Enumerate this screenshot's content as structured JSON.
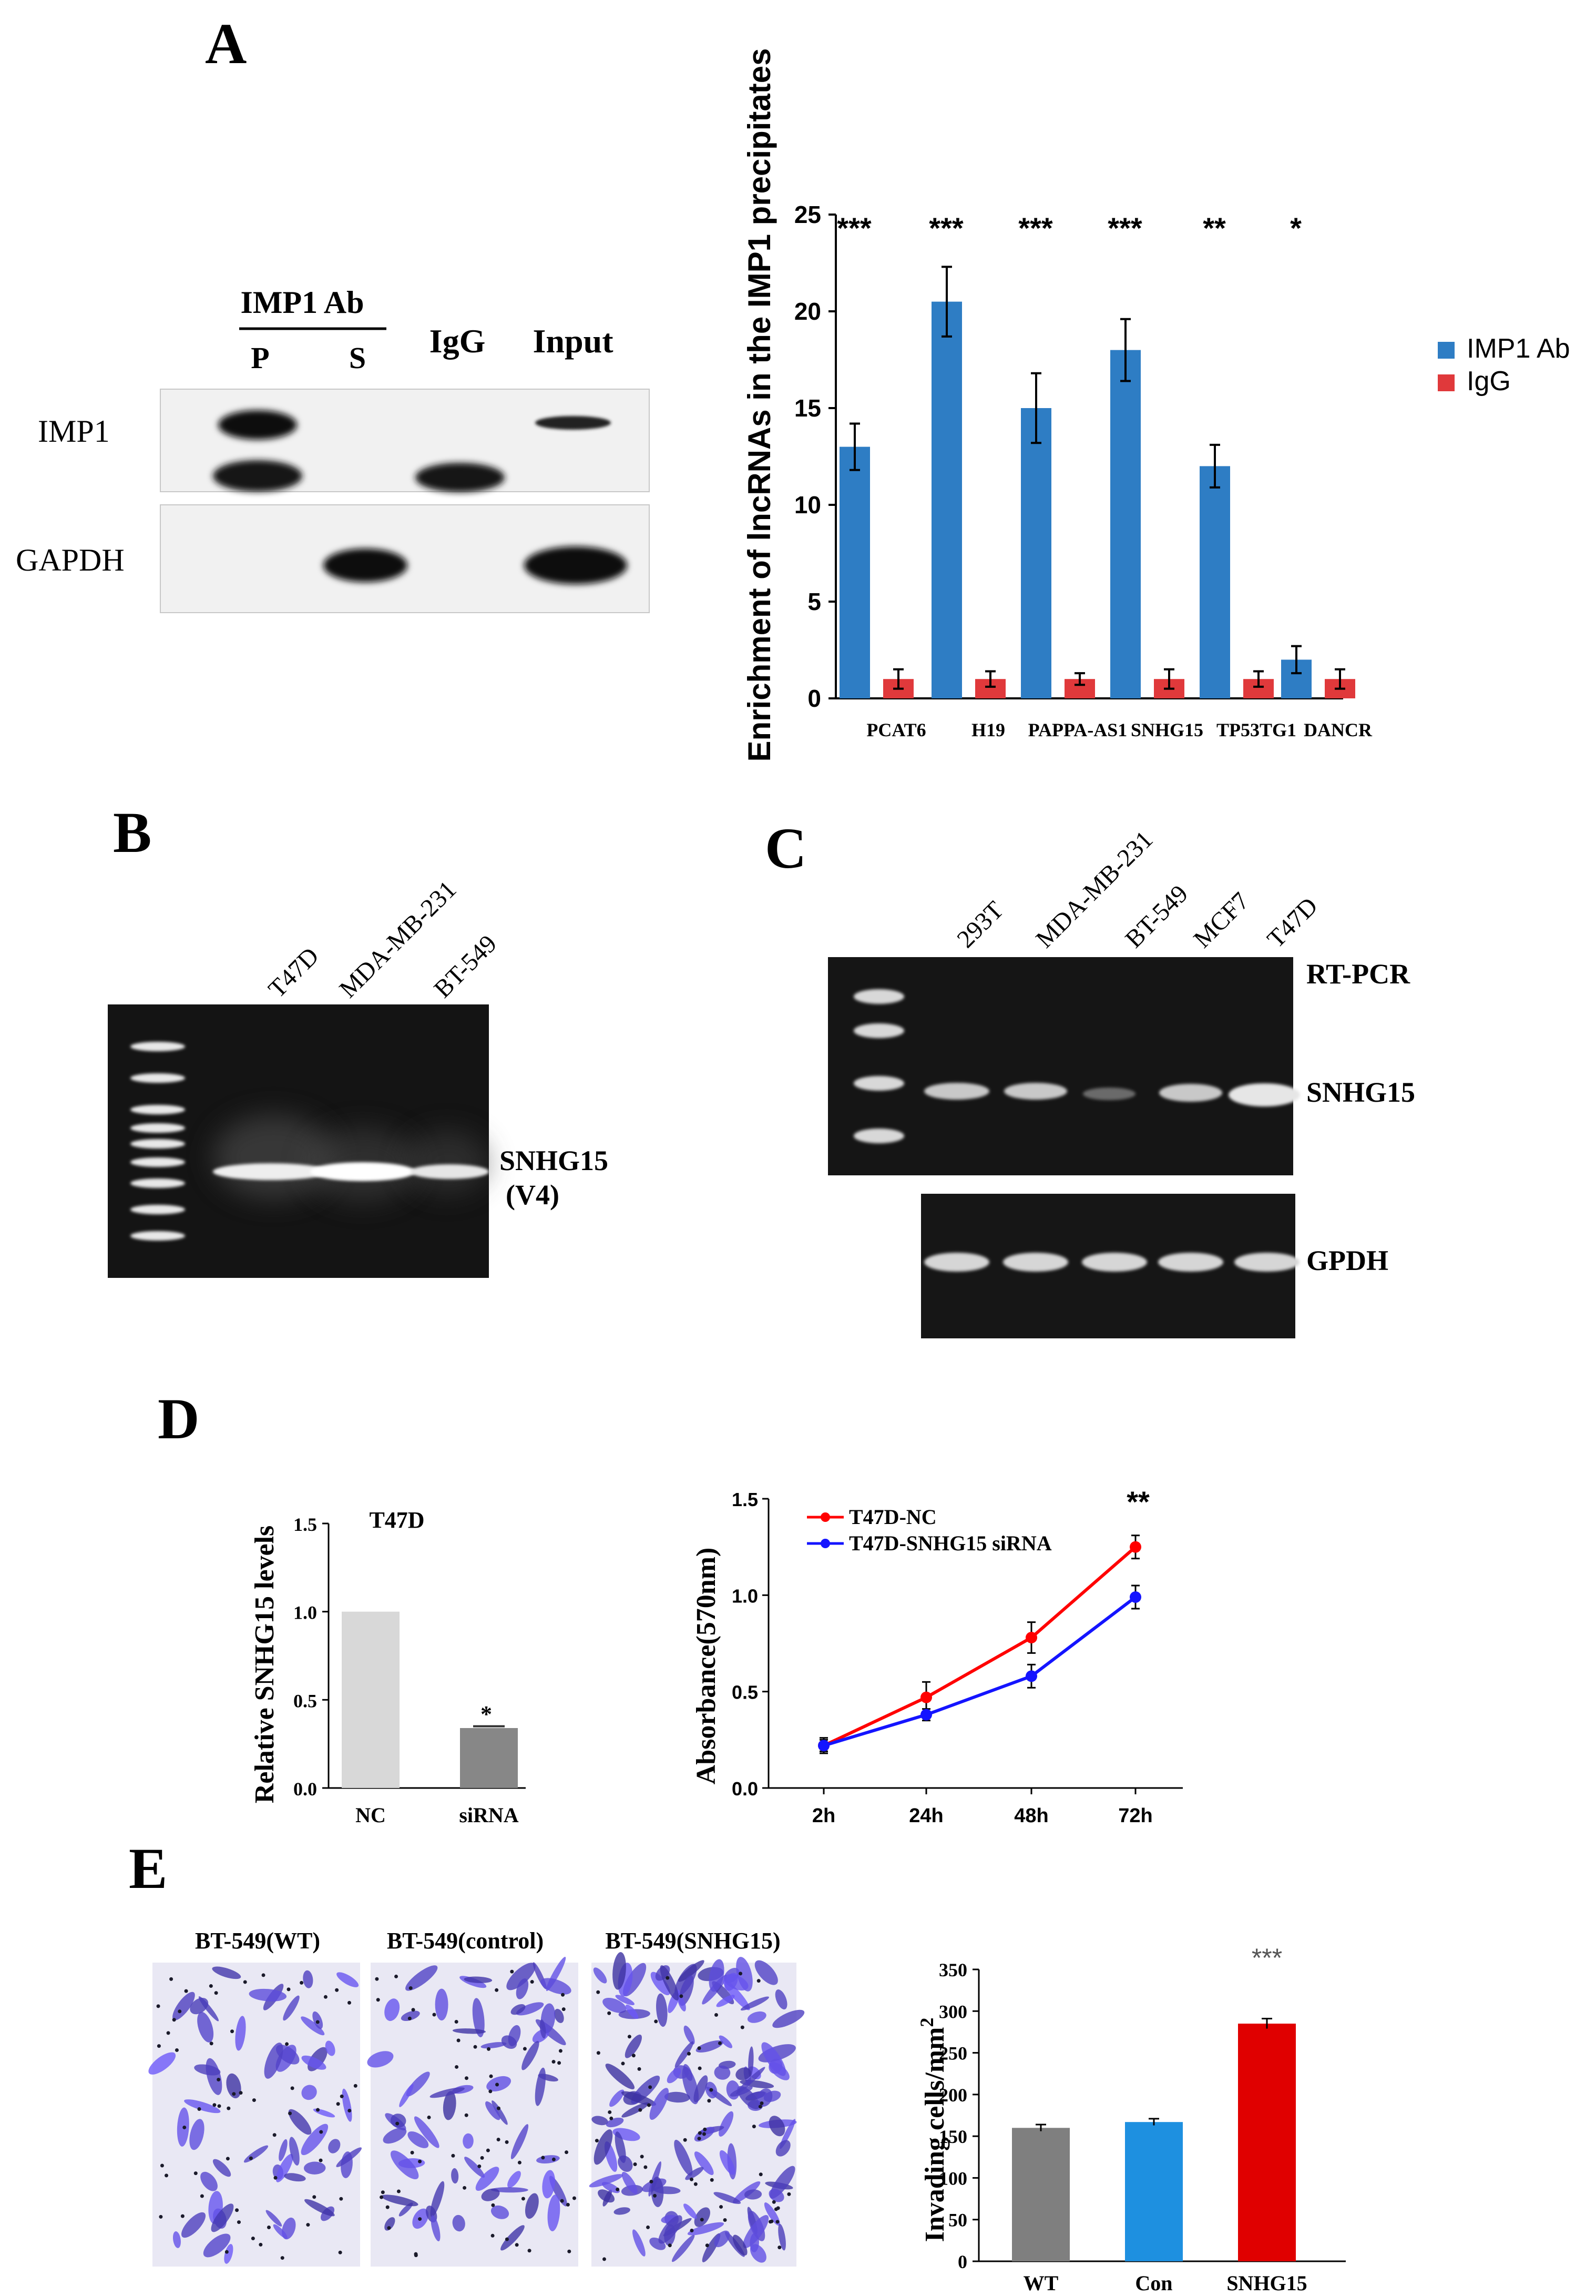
{
  "panel_labels": {
    "A": "A",
    "B": "B",
    "C": "C",
    "D": "D",
    "E": "E"
  },
  "panel_a_blot": {
    "group_label": "IMP1 Ab",
    "lanes": [
      "P",
      "S",
      "IgG",
      "Input"
    ],
    "rows": [
      "IMP1",
      "GAPDH"
    ]
  },
  "panel_b_gel": {
    "lanes": [
      "T47D",
      "MDA-MB-231",
      "BT-549"
    ],
    "band_label_line1": "SNHG15",
    "band_label_line2": "(V4)"
  },
  "panel_c_gel": {
    "lanes": [
      "293T",
      "MDA-MB-231",
      "BT-549",
      "MCF7",
      "T47D"
    ],
    "label_rtpcr": "RT-PCR",
    "label_band": "SNHG15",
    "label_control": "GPDH"
  },
  "panel_e_images": {
    "labels": [
      "BT-549(WT)",
      "BT-549(control)",
      "BT-549(SNHG15)"
    ]
  },
  "colors": {
    "blue": "#2e7dc4",
    "red": "#e0393b",
    "gray": "#7f7f7f",
    "lightblue": "#1e90e0",
    "brightred": "#e00000",
    "line_red": "#ff0000",
    "line_blue": "#1414ff"
  },
  "chart_data": [
    {
      "id": "A",
      "type": "bar",
      "ylabel": "Enrichment of lncRNAs in the IMP1 precipitates",
      "categories": [
        "PCAT6",
        "H19",
        "PAPPA-AS1",
        "SNHG15",
        "TP53TG1",
        "DANCR"
      ],
      "ylim": [
        0,
        25
      ],
      "yticks": [
        0,
        5,
        10,
        15,
        20,
        25
      ],
      "legend_position": "right",
      "series": [
        {
          "name": "IMP1 Ab",
          "values": [
            13,
            20.5,
            15,
            18,
            12,
            2
          ],
          "errors": [
            1.2,
            1.8,
            1.8,
            1.6,
            1.1,
            0.7
          ]
        },
        {
          "name": "IgG",
          "values": [
            1,
            1,
            1,
            1,
            1,
            1
          ],
          "errors": [
            0.5,
            0.4,
            0.3,
            0.5,
            0.4,
            0.5
          ]
        }
      ],
      "annotations": [
        "***",
        "***",
        "***",
        "***",
        "**",
        "*"
      ]
    },
    {
      "id": "D1",
      "type": "bar",
      "title": "T47D",
      "ylabel": "Relative SNHG15 levels",
      "categories": [
        "NC",
        "siRNA"
      ],
      "values": [
        1.0,
        0.34
      ],
      "errors": [
        0,
        0.01
      ],
      "ylim": [
        0,
        1.5
      ],
      "yticks": [
        "0.0",
        "0.5",
        "1.0",
        "1.5"
      ],
      "annotations": [
        "",
        "*"
      ]
    },
    {
      "id": "D2",
      "type": "line",
      "ylabel": "Absorbance(570nm)",
      "x": [
        "2h",
        "24h",
        "48h",
        "72h"
      ],
      "ylim": [
        0,
        1.5
      ],
      "yticks": [
        "0.0",
        "0.5",
        "1.0",
        "1.5"
      ],
      "legend_position": "top-left",
      "series": [
        {
          "name": "T47D-NC",
          "values": [
            0.22,
            0.47,
            0.78,
            1.25
          ],
          "errors": [
            0.04,
            0.08,
            0.08,
            0.06
          ]
        },
        {
          "name": "T47D-SNHG15 siRNA",
          "values": [
            0.22,
            0.38,
            0.58,
            0.99
          ],
          "errors": [
            0.03,
            0.03,
            0.06,
            0.06
          ]
        }
      ],
      "annotation": "**"
    },
    {
      "id": "E",
      "type": "bar",
      "ylabel": "Invading cells/mm",
      "ylabel_sup": "2",
      "categories": [
        "WT",
        "Con",
        "SNHG15"
      ],
      "values": [
        160,
        167,
        285
      ],
      "errors": [
        4,
        4,
        6
      ],
      "ylim": [
        0,
        350
      ],
      "yticks": [
        0,
        50,
        100,
        150,
        200,
        250,
        300,
        350
      ],
      "annotations": [
        "",
        "",
        "***"
      ]
    }
  ]
}
